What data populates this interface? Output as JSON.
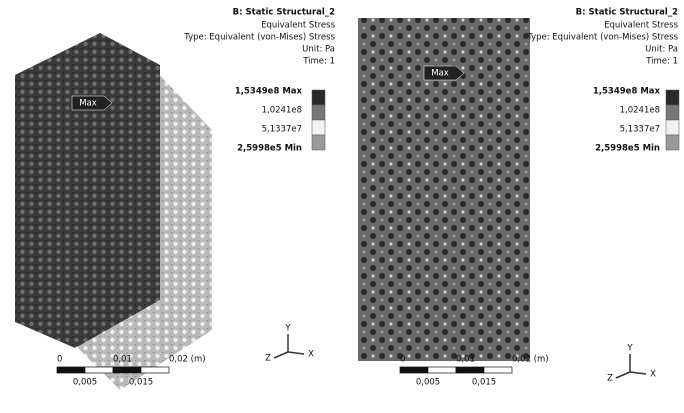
{
  "panels": [
    {
      "title": "B: Static Structural_2",
      "result": "Equivalent Stress",
      "type_line": "Type: Equivalent (von-Mises) Stress",
      "unit": "Unit: Pa",
      "time": "Time: 1",
      "legend": [
        "1,5349e8 Max",
        "1,0241e8",
        "5,1337e7",
        "2,5998e5 Min"
      ],
      "probe": "Max",
      "scale_top": [
        "0",
        "0,01",
        "0,02 (m)"
      ],
      "scale_bottom": [
        "0,005",
        "0,015"
      ],
      "axes": [
        "Y",
        "Z",
        "X"
      ]
    },
    {
      "title": "B: Static Structural_2",
      "result": "Equivalent Stress",
      "type_line": "Type: Equivalent (von-Mises) Stress",
      "unit": "Unit: Pa",
      "time": "Time: 1",
      "legend": [
        "1,5349e8 Max",
        "1,0241e8",
        "5,1337e7",
        "2,5998e5 Min"
      ],
      "probe": "Max",
      "scale_top": [
        "0",
        "0,01",
        "0,02 (m)"
      ],
      "scale_bottom": [
        "0,005",
        "0,015"
      ],
      "axes": [
        "Y",
        "Z",
        "X"
      ]
    }
  ]
}
